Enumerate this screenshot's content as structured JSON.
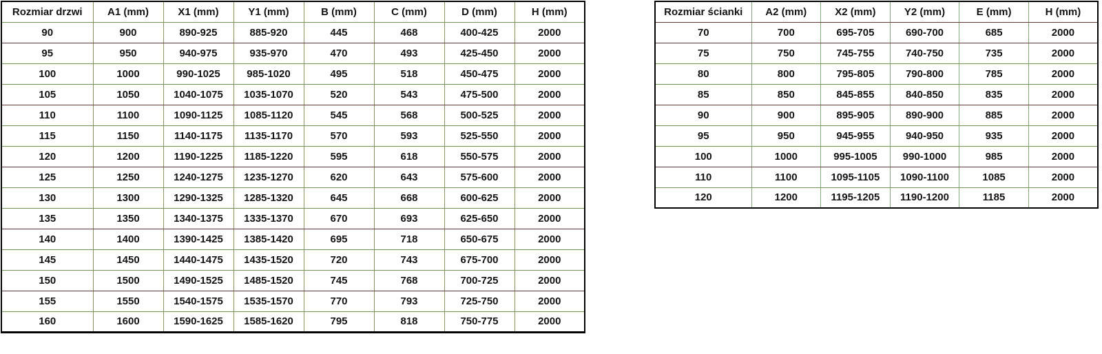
{
  "tables": {
    "door": {
      "title": "door size table",
      "headers": [
        "Rozmiar drzwi",
        "A1 (mm)",
        "X1 (mm)",
        "Y1 (mm)",
        "B (mm)",
        "C (mm)",
        "D (mm)",
        "H (mm)"
      ],
      "rows": [
        [
          "90",
          "900",
          "890-925",
          "885-920",
          "445",
          "468",
          "400-425",
          "2000"
        ],
        [
          "95",
          "950",
          "940-975",
          "935-970",
          "470",
          "493",
          "425-450",
          "2000"
        ],
        [
          "100",
          "1000",
          "990-1025",
          "985-1020",
          "495",
          "518",
          "450-475",
          "2000"
        ],
        [
          "105",
          "1050",
          "1040-1075",
          "1035-1070",
          "520",
          "543",
          "475-500",
          "2000"
        ],
        [
          "110",
          "1100",
          "1090-1125",
          "1085-1120",
          "545",
          "568",
          "500-525",
          "2000"
        ],
        [
          "115",
          "1150",
          "1140-1175",
          "1135-1170",
          "570",
          "593",
          "525-550",
          "2000"
        ],
        [
          "120",
          "1200",
          "1190-1225",
          "1185-1220",
          "595",
          "618",
          "550-575",
          "2000"
        ],
        [
          "125",
          "1250",
          "1240-1275",
          "1235-1270",
          "620",
          "643",
          "575-600",
          "2000"
        ],
        [
          "130",
          "1300",
          "1290-1325",
          "1285-1320",
          "645",
          "668",
          "600-625",
          "2000"
        ],
        [
          "135",
          "1350",
          "1340-1375",
          "1335-1370",
          "670",
          "693",
          "625-650",
          "2000"
        ],
        [
          "140",
          "1400",
          "1390-1425",
          "1385-1420",
          "695",
          "718",
          "650-675",
          "2000"
        ],
        [
          "145",
          "1450",
          "1440-1475",
          "1435-1520",
          "720",
          "743",
          "675-700",
          "2000"
        ],
        [
          "150",
          "1500",
          "1490-1525",
          "1485-1520",
          "745",
          "768",
          "700-725",
          "2000"
        ],
        [
          "155",
          "1550",
          "1540-1575",
          "1535-1570",
          "770",
          "793",
          "725-750",
          "2000"
        ],
        [
          "160",
          "1600",
          "1590-1625",
          "1585-1620",
          "795",
          "818",
          "750-775",
          "2000"
        ]
      ]
    },
    "wall": {
      "title": "wall size table",
      "headers": [
        "Rozmiar ścianki",
        "A2 (mm)",
        "X2 (mm)",
        "Y2 (mm)",
        "E (mm)",
        "H (mm)"
      ],
      "rows": [
        [
          "70",
          "700",
          "695-705",
          "690-700",
          "685",
          "2000"
        ],
        [
          "75",
          "750",
          "745-755",
          "740-750",
          "735",
          "2000"
        ],
        [
          "80",
          "800",
          "795-805",
          "790-800",
          "785",
          "2000"
        ],
        [
          "85",
          "850",
          "845-855",
          "840-850",
          "835",
          "2000"
        ],
        [
          "90",
          "900",
          "895-905",
          "890-900",
          "885",
          "2000"
        ],
        [
          "95",
          "950",
          "945-955",
          "940-950",
          "935",
          "2000"
        ],
        [
          "100",
          "1000",
          "995-1005",
          "990-1000",
          "985",
          "2000"
        ],
        [
          "110",
          "1100",
          "1095-1105",
          "1090-1100",
          "1085",
          "2000"
        ],
        [
          "120",
          "1200",
          "1195-1205",
          "1190-1200",
          "1185",
          "2000"
        ]
      ]
    }
  },
  "colors": {
    "background": "#ffffff",
    "outer_border": "#000000",
    "text": "#131313",
    "vertical_line_left_table": "#8f9060",
    "vertical_line_right_table": "#85a87d",
    "horizontal_line_green": "#6f9153",
    "horizontal_line_maroon": "#5e3434"
  }
}
